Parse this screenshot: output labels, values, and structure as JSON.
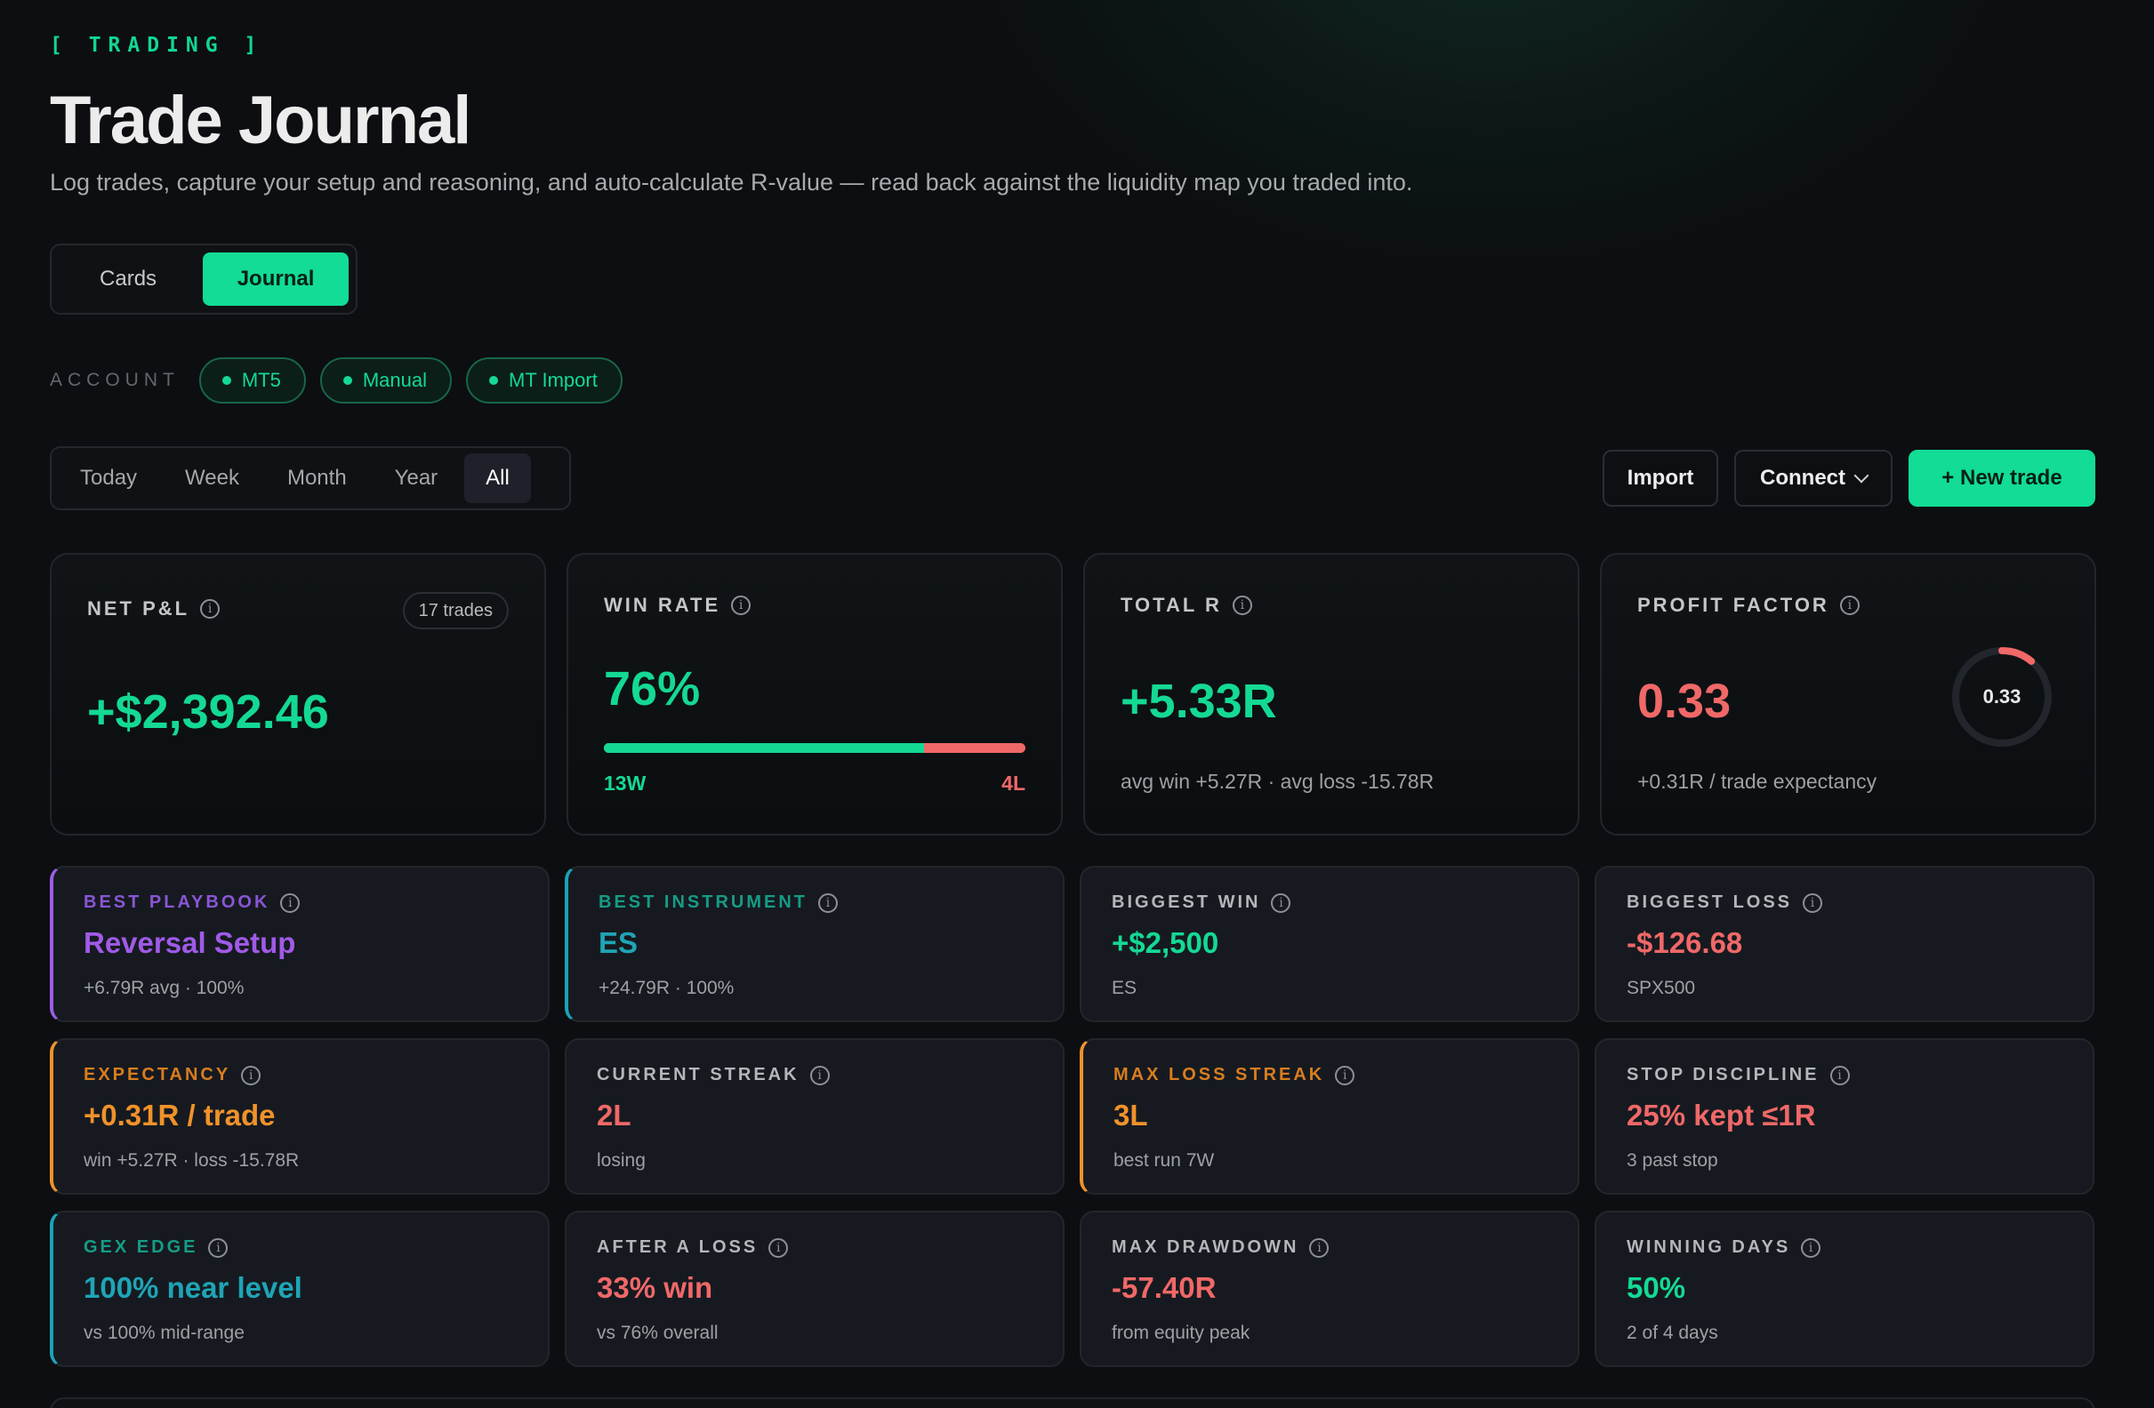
{
  "header": {
    "eyebrow": "[ TRADING ]",
    "title": "Trade Journal",
    "subtitle": "Log trades, capture your setup and reasoning, and auto-calculate R-value — read back against the liquidity map you traded into."
  },
  "view_toggle": {
    "cards": "Cards",
    "journal": "Journal",
    "active": "Journal"
  },
  "account": {
    "label": "ACCOUNT",
    "chips": [
      "MT5",
      "Manual",
      "MT Import"
    ]
  },
  "range_tabs": {
    "items": [
      "Today",
      "Week",
      "Month",
      "Year",
      "All"
    ],
    "active": "All"
  },
  "actions": {
    "import": "Import",
    "connect": "Connect",
    "new_trade": "+ New trade"
  },
  "stats": {
    "net_pnl": {
      "label": "NET P&L",
      "badge": "17 trades",
      "value": "+$2,392.46"
    },
    "win_rate": {
      "label": "WIN RATE",
      "value": "76%",
      "wins": "13W",
      "losses": "4L",
      "win_fraction": 0.76
    },
    "total_r": {
      "label": "TOTAL R",
      "value": "+5.33R",
      "sub": "avg win +5.27R · avg loss -15.78R"
    },
    "profit_factor": {
      "label": "PROFIT FACTOR",
      "value": "0.33",
      "ring_value": "0.33",
      "ring_fraction": 0.11,
      "sub": "+0.31R / trade expectancy"
    }
  },
  "cards": {
    "best_playbook": {
      "label": "BEST PLAYBOOK",
      "value": "Reversal Setup",
      "sub": "+6.79R avg · 100%"
    },
    "best_instrument": {
      "label": "BEST INSTRUMENT",
      "value": "ES",
      "sub": "+24.79R · 100%"
    },
    "biggest_win": {
      "label": "BIGGEST WIN",
      "value": "+$2,500",
      "sub": "ES"
    },
    "biggest_loss": {
      "label": "BIGGEST LOSS",
      "value": "-$126.68",
      "sub": "SPX500"
    },
    "expectancy": {
      "label": "EXPECTANCY",
      "value": "+0.31R / trade",
      "sub": "win +5.27R · loss -15.78R"
    },
    "current_streak": {
      "label": "CURRENT STREAK",
      "value": "2L",
      "sub": "losing"
    },
    "max_loss_streak": {
      "label": "MAX LOSS STREAK",
      "value": "3L",
      "sub": "best run 7W"
    },
    "stop_discipline": {
      "label": "STOP DISCIPLINE",
      "value": "25% kept ≤1R",
      "sub": "3 past stop"
    },
    "gex_edge": {
      "label": "GEX EDGE",
      "value": "100% near level",
      "sub": "vs 100% mid-range"
    },
    "after_a_loss": {
      "label": "AFTER A LOSS",
      "value": "33% win",
      "sub": "vs 76% overall"
    },
    "max_drawdown": {
      "label": "MAX DRAWDOWN",
      "value": "-57.40R",
      "sub": "from equity peak"
    },
    "winning_days": {
      "label": "WINNING DAYS",
      "value": "50%",
      "sub": "2 of 4 days"
    }
  },
  "colors": {
    "accent_green": "#14d994",
    "loss_red": "#f06868",
    "purple": "#a05ae8",
    "teal": "#1ea5b6",
    "orange": "#f0922a",
    "background": "#0c0e11"
  }
}
